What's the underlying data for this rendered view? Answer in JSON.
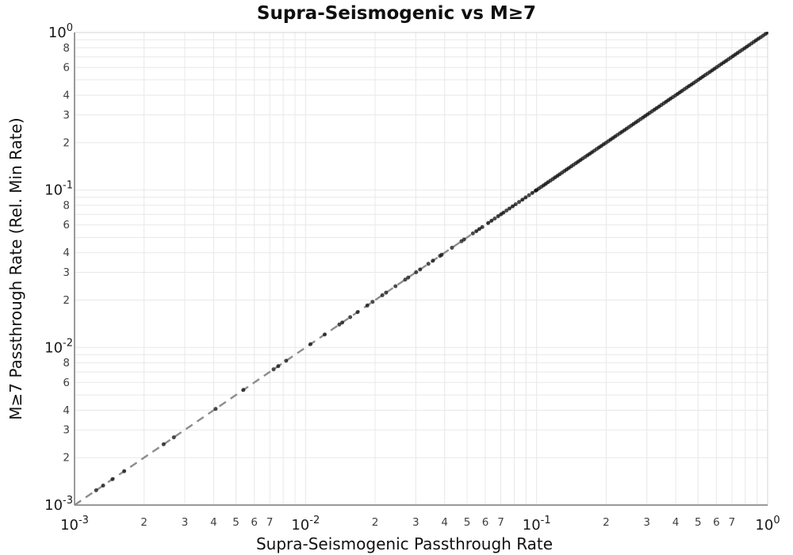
{
  "page": {
    "background": "#ffffff"
  },
  "chart_data": {
    "type": "scatter",
    "title": "Supra-Seismogenic vs M≥7",
    "xlabel": "Supra-Seismogenic Passthrough Rate",
    "ylabel": "M≥7 Passthrough Rate (Rel. Min Rate)",
    "x_scale": "log",
    "y_scale": "log",
    "xlim": [
      0.001,
      1.0
    ],
    "ylim": [
      0.001,
      1.0
    ],
    "grid": true,
    "legend": false,
    "x_major_tick_exponents": [
      -3,
      -2,
      -1,
      0
    ],
    "x_major_tick_labels": [
      "10^-3",
      "10^-2",
      "10^-1",
      "10^0"
    ],
    "y_major_tick_exponents": [
      0,
      -1,
      -2,
      -3
    ],
    "y_major_tick_labels": [
      "10^0",
      "10^-1",
      "10^-2",
      "10^-3"
    ],
    "x_minor_tick_digits": [
      2,
      3,
      4,
      5,
      6,
      7
    ],
    "y_minor_tick_digits": [
      8,
      6,
      4,
      3,
      2
    ],
    "gridline_digits": [
      2,
      3,
      4,
      5,
      6,
      7,
      8,
      9
    ],
    "colors": {
      "grid": "#e8e8e8",
      "plot_border": "#d6d6d6",
      "axis_line": "#9a9a9a",
      "major_tick_label": "#1a1a1a",
      "minor_tick_label": "#404040",
      "title_text": "#0f0f0f",
      "marker": "#0d0d0d",
      "reference_line": "#8d8d8d"
    },
    "reference_line": {
      "type": "1:1 diagonal (y = x)",
      "from": [
        0.001,
        0.001
      ],
      "to": [
        1.0,
        1.0
      ],
      "style": "dashed",
      "color": "#8d8d8d"
    },
    "series": [
      {
        "marker": {
          "color": "#0d0d0d",
          "size": 5,
          "opacity": 0.75
        },
        "note": "all points lie on the 1:1 diagonal; dense toward 1.0",
        "x": [
          0.00124,
          0.00133,
          0.00146,
          0.00164,
          0.00243,
          0.00269,
          0.00408,
          0.00538,
          0.00727,
          0.00762,
          0.00824,
          0.0105,
          0.0121,
          0.014,
          0.0144,
          0.0156,
          0.0168,
          0.0185,
          0.0195,
          0.0215,
          0.0223,
          0.0245,
          0.027,
          0.0278,
          0.0301,
          0.0313,
          0.034,
          0.0356,
          0.0382,
          0.0388,
          0.043,
          0.0473,
          0.0485,
          0.053,
          0.0548,
          0.0565,
          0.0582,
          0.0617,
          0.0638,
          0.0659,
          0.0681,
          0.0702,
          0.0719,
          0.0741,
          0.0763,
          0.0788,
          0.0812,
          0.0839,
          0.0868,
          0.0897,
          0.0927,
          0.0958,
          0.099,
          0.1,
          0.1023,
          0.1047,
          0.1072,
          0.1096,
          0.1122,
          0.1148,
          0.1175,
          0.1202,
          0.123,
          0.1259,
          0.1288,
          0.1318,
          0.1349,
          0.138,
          0.1413,
          0.1445,
          0.1479,
          0.1514,
          0.1549,
          0.1585,
          0.1622,
          0.166,
          0.1698,
          0.1738,
          0.1778,
          0.182,
          0.1862,
          0.1905,
          0.195,
          0.1995,
          0.2042,
          0.2089,
          0.2138,
          0.2188,
          0.2239,
          0.2291,
          0.2344,
          0.2399,
          0.2455,
          0.2512,
          0.257,
          0.263,
          0.2692,
          0.2754,
          0.2818,
          0.2884,
          0.2951,
          0.302,
          0.309,
          0.3162,
          0.3236,
          0.3311,
          0.3388,
          0.3467,
          0.3548,
          0.3631,
          0.3715,
          0.3802,
          0.389,
          0.3981,
          0.4074,
          0.4169,
          0.4266,
          0.4365,
          0.4467,
          0.4571,
          0.4677,
          0.4786,
          0.4898,
          0.5012,
          0.5129,
          0.5248,
          0.537,
          0.5495,
          0.5623,
          0.5754,
          0.5888,
          0.6026,
          0.6166,
          0.631,
          0.6457,
          0.6607,
          0.6761,
          0.6918,
          0.7079,
          0.7244,
          0.7413,
          0.7586,
          0.7762,
          0.7943,
          0.8128,
          0.8318,
          0.8511,
          0.871,
          0.8913,
          0.912,
          0.9333,
          0.955,
          0.9772,
          1.0
        ],
        "y": [
          0.00124,
          0.00133,
          0.00146,
          0.00164,
          0.00243,
          0.00269,
          0.00408,
          0.00538,
          0.00727,
          0.00762,
          0.00824,
          0.0105,
          0.0121,
          0.014,
          0.0144,
          0.0156,
          0.0168,
          0.0185,
          0.0195,
          0.0215,
          0.0223,
          0.0245,
          0.027,
          0.0278,
          0.0301,
          0.0313,
          0.034,
          0.0356,
          0.0382,
          0.0388,
          0.043,
          0.0473,
          0.0485,
          0.053,
          0.0548,
          0.0565,
          0.0582,
          0.0617,
          0.0638,
          0.0659,
          0.0681,
          0.0702,
          0.0719,
          0.0741,
          0.0763,
          0.0788,
          0.0812,
          0.0839,
          0.0868,
          0.0897,
          0.0927,
          0.0958,
          0.099,
          0.1,
          0.1023,
          0.1047,
          0.1072,
          0.1096,
          0.1122,
          0.1148,
          0.1175,
          0.1202,
          0.123,
          0.1259,
          0.1288,
          0.1318,
          0.1349,
          0.138,
          0.1413,
          0.1445,
          0.1479,
          0.1514,
          0.1549,
          0.1585,
          0.1622,
          0.166,
          0.1698,
          0.1738,
          0.1778,
          0.182,
          0.1862,
          0.1905,
          0.195,
          0.1995,
          0.2042,
          0.2089,
          0.2138,
          0.2188,
          0.2239,
          0.2291,
          0.2344,
          0.2399,
          0.2455,
          0.2512,
          0.257,
          0.263,
          0.2692,
          0.2754,
          0.2818,
          0.2884,
          0.2951,
          0.302,
          0.309,
          0.3162,
          0.3236,
          0.3311,
          0.3388,
          0.3467,
          0.3548,
          0.3631,
          0.3715,
          0.3802,
          0.389,
          0.3981,
          0.4074,
          0.4169,
          0.4266,
          0.4365,
          0.4467,
          0.4571,
          0.4677,
          0.4786,
          0.4898,
          0.5012,
          0.5129,
          0.5248,
          0.537,
          0.5495,
          0.5623,
          0.5754,
          0.5888,
          0.6026,
          0.6166,
          0.631,
          0.6457,
          0.6607,
          0.6761,
          0.6918,
          0.7079,
          0.7244,
          0.7413,
          0.7586,
          0.7762,
          0.7943,
          0.8128,
          0.8318,
          0.8511,
          0.871,
          0.8913,
          0.912,
          0.9333,
          0.955,
          0.9772,
          1.0
        ]
      }
    ]
  }
}
